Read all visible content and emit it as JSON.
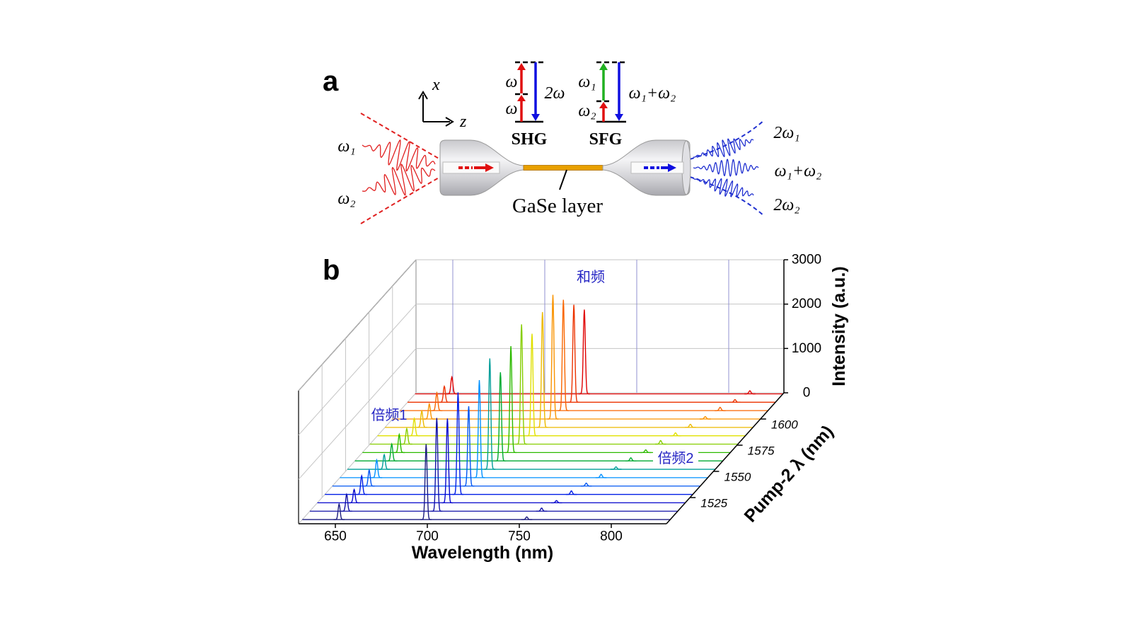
{
  "panel_a": {
    "label": "a",
    "axes": [
      "x",
      "z"
    ],
    "inputs": [
      "ω₁",
      "ω₂"
    ],
    "shg": {
      "levels": [
        "ω",
        "ω"
      ],
      "output": "2ω",
      "name": "SHG"
    },
    "sfg": {
      "levels": [
        "ω₁",
        "ω₂"
      ],
      "output": "ω₁+ω₂",
      "name": "SFG"
    },
    "layer": "GaSe layer",
    "outputs": [
      "2ω₁",
      "ω₁+ω₂",
      "2ω₂"
    ]
  },
  "panel_b": {
    "label": "b"
  },
  "chart_data": {
    "type": "waterfall",
    "x_label": "Wavelength (nm)",
    "y_label": "Intensity (a.u.)",
    "z_label": "Pump-2 λ (nm)",
    "xlim": [
      630,
      830
    ],
    "xticks": [
      650,
      700,
      750,
      800
    ],
    "ylim": [
      0,
      3000
    ],
    "yticks": [
      0,
      1000,
      2000,
      3000
    ],
    "zlim": [
      1500,
      1625
    ],
    "zticks": [
      1525,
      1550,
      1575,
      1600
    ],
    "grid": true,
    "colormap": [
      "#1c1c80",
      "#0000e0",
      "#0090ff",
      "#00b000",
      "#e0e000",
      "#ff8000",
      "#e00000"
    ],
    "z": [
      1504,
      1512,
      1520,
      1528,
      1536,
      1544,
      1552,
      1560,
      1568,
      1576,
      1584,
      1592,
      1600,
      1608,
      1616,
      1624
    ],
    "series": [
      {
        "name": "倍频1",
        "x": [
          650,
          650,
          650,
          650,
          650,
          650,
          650,
          650,
          650,
          650,
          650,
          650,
          650,
          650,
          650,
          650
        ],
        "values": [
          350,
          380,
          300,
          420,
          360,
          400,
          330,
          380,
          410,
          350,
          390,
          370,
          340,
          400,
          360,
          380
        ]
      },
      {
        "name": "和频",
        "x": [
          697.3,
          699.0,
          700.7,
          702.4,
          704.1,
          705.8,
          707.4,
          709.1,
          710.7,
          712.4,
          714.0,
          715.6,
          717.2,
          718.8,
          720.4,
          722.0
        ],
        "values": [
          1700,
          2100,
          1900,
          2300,
          1800,
          2200,
          2500,
          2000,
          2400,
          2700,
          2300,
          2600,
          2800,
          2500,
          2200,
          1900
        ]
      },
      {
        "name": "倍频2",
        "x": [
          752,
          756,
          760,
          764,
          768,
          772,
          776,
          780,
          784,
          788,
          792,
          796,
          800,
          804,
          808,
          812
        ],
        "values": [
          60,
          70,
          50,
          80,
          65,
          75,
          55,
          70,
          60,
          80,
          65,
          70,
          55,
          75,
          60,
          70
        ]
      }
    ]
  }
}
